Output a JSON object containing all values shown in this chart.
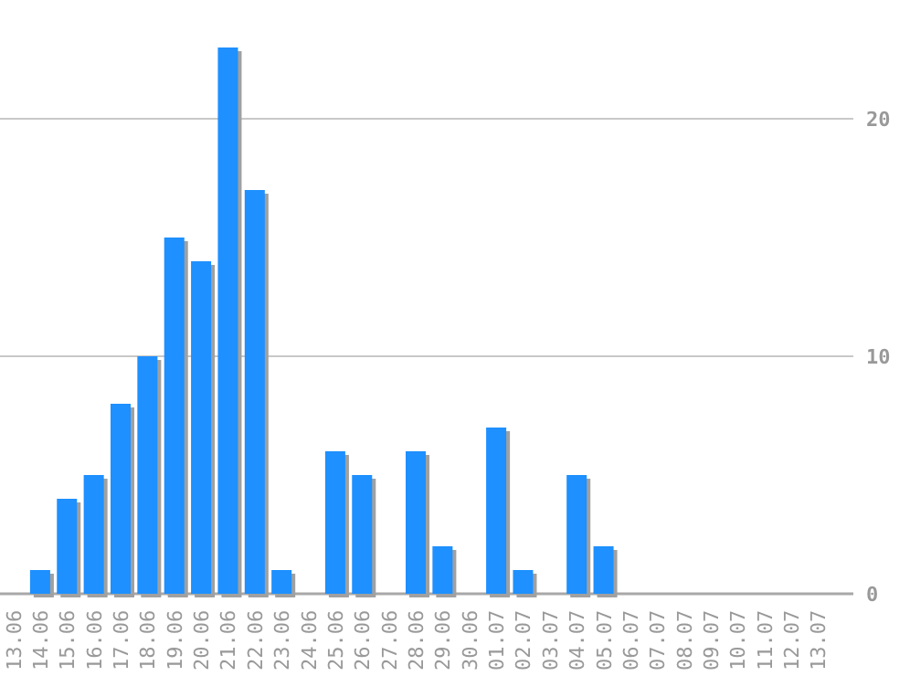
{
  "chart_data": {
    "type": "bar",
    "categories": [
      "13.06",
      "14.06",
      "15.06",
      "16.06",
      "17.06",
      "18.06",
      "19.06",
      "20.06",
      "21.06",
      "22.06",
      "23.06",
      "24.06",
      "25.06",
      "26.06",
      "27.06",
      "28.06",
      "29.06",
      "30.06",
      "01.07",
      "02.07",
      "03.07",
      "04.07",
      "05.07",
      "06.07",
      "07.07",
      "08.07",
      "09.07",
      "10.07",
      "11.07",
      "12.07",
      "13.07"
    ],
    "values": [
      0,
      1,
      4,
      5,
      8,
      10,
      15,
      14,
      23,
      17,
      1,
      0,
      6,
      5,
      0,
      6,
      2,
      0,
      7,
      1,
      0,
      5,
      2,
      0,
      0,
      0,
      0,
      0,
      0,
      0,
      0
    ],
    "color": "#1e90ff",
    "ylim": [
      0,
      25
    ],
    "yticks": [
      0,
      10,
      20
    ],
    "grid": "y"
  }
}
